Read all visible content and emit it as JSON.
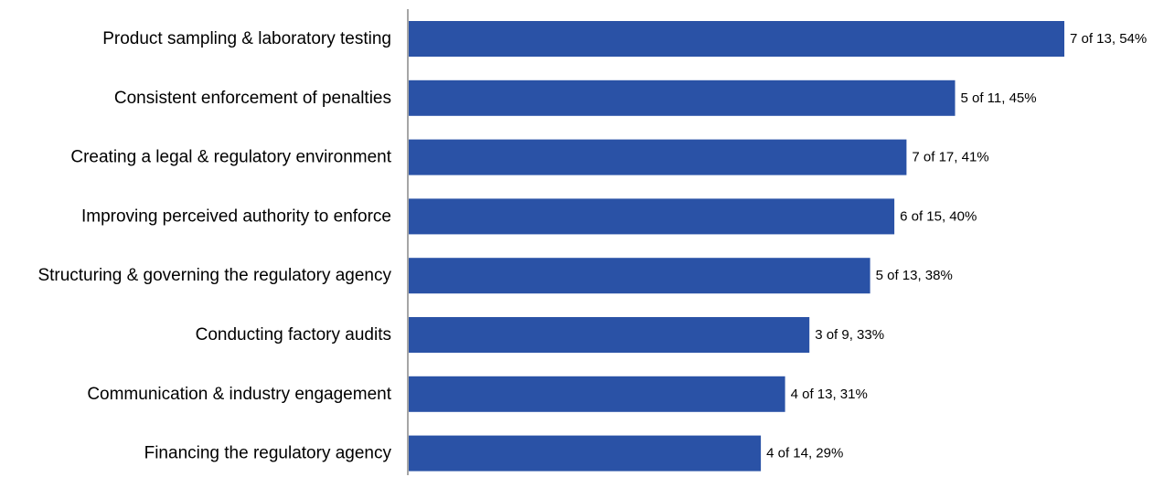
{
  "chart_data": {
    "type": "bar",
    "orientation": "horizontal",
    "categories": [
      "Product sampling & laboratory testing",
      "Consistent enforcement of penalties",
      "Creating a legal & regulatory environment",
      "Improving perceived authority to enforce ",
      "Structuring & governing the regulatory agency",
      "Conducting factory audits",
      "Communication & industry engagement",
      "Financing the regulatory agency"
    ],
    "values": [
      54,
      45,
      41,
      40,
      38,
      33,
      31,
      29
    ],
    "data_labels": [
      "7 of 13, 54%",
      "5 of 11, 45%",
      "7 of 17, 41%",
      "6 of 15, 40%",
      "5 of 13, 38%",
      "3 of 9, 33%",
      "4 of 13, 31%",
      "4 of 14, 29%"
    ],
    "title": "",
    "xlabel": "",
    "ylabel": "",
    "xlim": [
      0,
      60
    ],
    "grid": false,
    "legend": "none",
    "bar_color": "#2A52A6",
    "axis_color": "#A6A6A6"
  }
}
